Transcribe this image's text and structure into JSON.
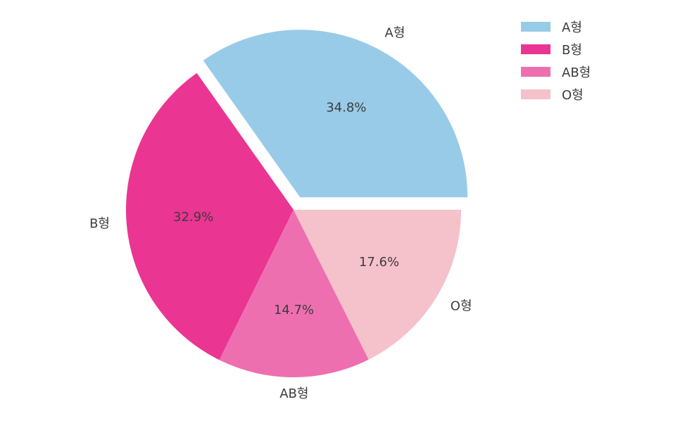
{
  "chart_data": {
    "type": "pie",
    "categories": [
      "A형",
      "B형",
      "AB형",
      "O형"
    ],
    "values": [
      34.8,
      32.9,
      14.7,
      17.6
    ],
    "pct_labels": [
      "34.8%",
      "32.9%",
      "14.7%",
      "17.6%"
    ],
    "colors": [
      "#98cbe8",
      "#ea3592",
      "#ee6fb0",
      "#f5c1cb"
    ],
    "exploded": [
      "A형"
    ],
    "start_angle_deg": 0,
    "direction": "counterclockwise",
    "legend_position": "top-right",
    "title": ""
  }
}
